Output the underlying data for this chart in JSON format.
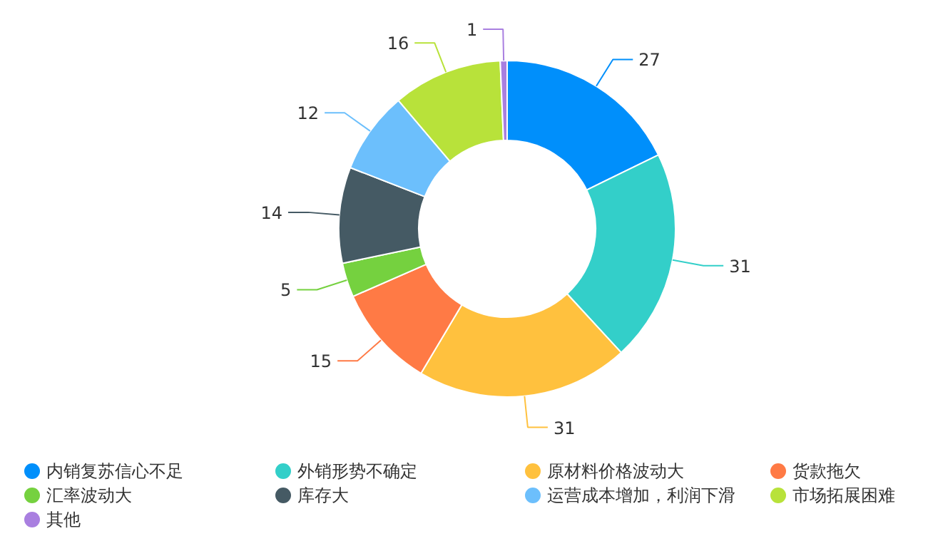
{
  "chart_data": {
    "type": "donut",
    "categories": [
      "内销复苏信心不足",
      "外销形势不确定",
      "原材料价格波动大",
      "货款拖欠",
      "汇率波动大",
      "库存大",
      "运营成本增加，利润下滑",
      "市场拓展困难",
      "其他"
    ],
    "values": [
      27,
      31,
      31,
      15,
      5,
      14,
      12,
      16,
      1
    ],
    "colors": [
      "#008ffb",
      "#33cfc9",
      "#ffc13e",
      "#ff7a45",
      "#75d13f",
      "#455a64",
      "#6cbffc",
      "#b8e23a",
      "#a97fe0"
    ],
    "data_labels": true,
    "legend": "bottom"
  }
}
